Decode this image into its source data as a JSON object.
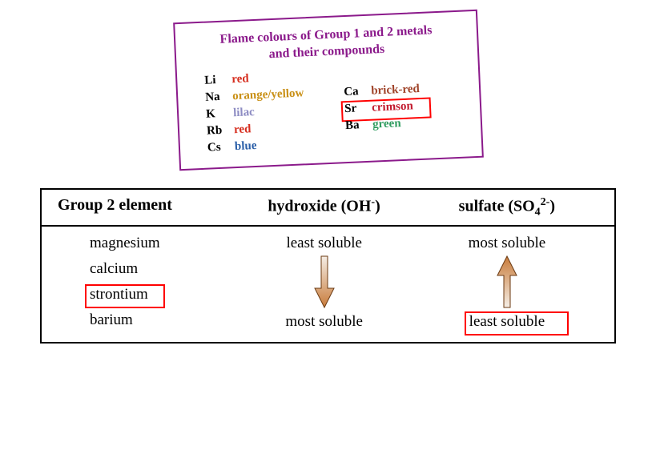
{
  "flame_box": {
    "border_color": "#8b1a8b",
    "title_color": "#8b1a8b",
    "title_line1": "Flame colours of Group 1 and 2 metals",
    "title_line2": "and their compounds",
    "group1": [
      {
        "symbol": "Li",
        "color_name": "red",
        "hex": "#d62e1f"
      },
      {
        "symbol": "Na",
        "color_name": "orange/yellow",
        "hex": "#c99016"
      },
      {
        "symbol": "K",
        "color_name": "lilac",
        "hex": "#8d8cc3"
      },
      {
        "symbol": "Rb",
        "color_name": "red",
        "hex": "#d62e1f"
      },
      {
        "symbol": "Cs",
        "color_name": "blue",
        "hex": "#2b5fa8"
      }
    ],
    "group2": [
      {
        "symbol": "Ca",
        "color_name": "brick-red",
        "hex": "#a0442a"
      },
      {
        "symbol": "Sr",
        "color_name": "crimson",
        "hex": "#c21a2e",
        "highlighted": true
      },
      {
        "symbol": "Ba",
        "color_name": "green",
        "hex": "#2f9c5f"
      }
    ],
    "highlight_color": "#ff0000"
  },
  "solubility_table": {
    "headers": {
      "col1": "Group 2 element",
      "col2_html": "hydroxide (OH⁻)",
      "col3_html": "sulfate (SO₄²⁻)"
    },
    "elements": [
      "magnesium",
      "calcium",
      "strontium",
      "barium"
    ],
    "highlighted_element_index": 2,
    "hydroxide_top": "least soluble",
    "hydroxide_bottom": "most soluble",
    "sulfate_top": "most soluble",
    "sulfate_bottom": "least soluble",
    "sulfate_bottom_highlighted": true,
    "arrow_fill_top": "#f5eee6",
    "arrow_fill_bottom": "#c87b3a",
    "arrow_stroke": "#6b3a12",
    "highlight_color": "#ff0000",
    "border_color": "#000000",
    "font_size_header": 20,
    "font_size_cell": 19
  }
}
